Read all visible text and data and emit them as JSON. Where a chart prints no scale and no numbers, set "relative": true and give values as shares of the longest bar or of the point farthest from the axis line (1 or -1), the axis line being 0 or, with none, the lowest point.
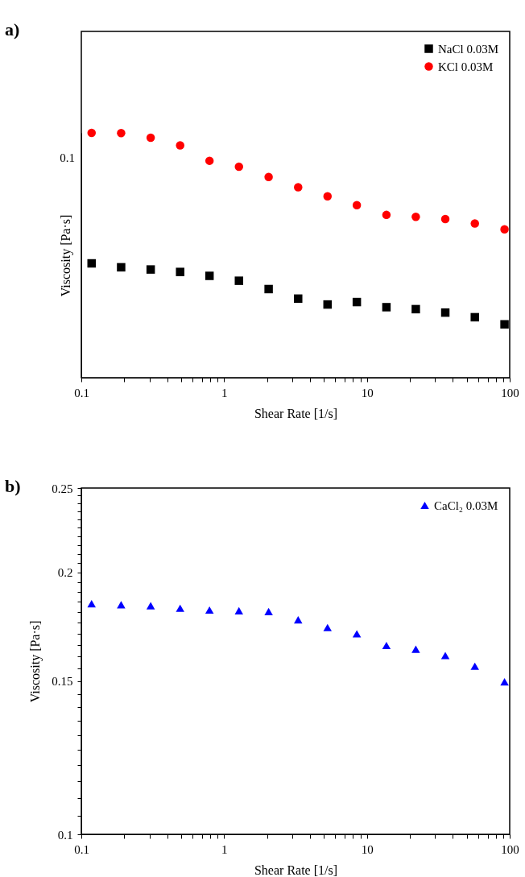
{
  "chart_data": [
    {
      "type": "scatter",
      "xlabel": "Shear Rate [1/s]",
      "ylabel": "Viscosity [Pa·s]",
      "log": "x",
      "relative": true,
      "grid": false,
      "legend": "top right",
      "annotations": [
        "a)",
        "0.1"
      ],
      "xlim": [
        0.1,
        100
      ],
      "xticks": [
        0.1,
        {
          "value": 0.2,
          "label": null
        },
        {
          "value": 0.3,
          "label": null
        },
        {
          "value": 0.4,
          "label": null
        },
        {
          "value": 0.5,
          "label": null
        },
        {
          "value": 0.6,
          "label": null
        },
        {
          "value": 0.7,
          "label": null
        },
        {
          "value": 0.8,
          "label": null
        },
        {
          "value": 0.9,
          "label": null
        },
        1,
        {
          "value": 2,
          "label": null
        },
        {
          "value": 3,
          "label": null
        },
        {
          "value": 4,
          "label": null
        },
        {
          "value": 5,
          "label": null
        },
        {
          "value": 6,
          "label": null
        },
        {
          "value": 7,
          "label": null
        },
        {
          "value": 8,
          "label": null
        },
        {
          "value": 9,
          "label": null
        },
        10,
        {
          "value": 20,
          "label": null
        },
        {
          "value": 30,
          "label": null
        },
        {
          "value": 40,
          "label": null
        },
        {
          "value": 50,
          "label": null
        },
        {
          "value": 60,
          "label": null
        },
        {
          "value": 70,
          "label": null
        },
        {
          "value": 80,
          "label": null
        },
        {
          "value": 90,
          "label": null
        },
        100
      ],
      "x": [
        0.118,
        0.19,
        0.306,
        0.492,
        0.79,
        1.27,
        2.05,
        3.3,
        5.3,
        8.5,
        13.7,
        22,
        35.4,
        57,
        92
      ],
      "series": [
        {
          "name": "NaCl 0.03M",
          "color": "#000000",
          "marker": "square",
          "values": [
            0.467,
            0.451,
            0.442,
            0.432,
            0.416,
            0.396,
            0.362,
            0.323,
            0.299,
            0.309,
            0.288,
            0.28,
            0.266,
            0.247,
            0.218
          ]
        },
        {
          "name": "KCl 0.03M",
          "color": "#ff0000",
          "marker": "circle",
          "values": [
            1,
            0.999,
            0.98,
            0.949,
            0.886,
            0.862,
            0.82,
            0.778,
            0.741,
            0.705,
            0.665,
            0.657,
            0.648,
            0.63,
            0.606
          ]
        }
      ]
    },
    {
      "type": "scatter",
      "xlabel": "Shear Rate [1/s]",
      "ylabel": "Viscosity [Pa·s]",
      "log": "xy",
      "grid": false,
      "legend": "top right",
      "annotations": [
        "b)"
      ],
      "xlim": [
        0.1,
        100
      ],
      "ylim": [
        0.1,
        0.25
      ],
      "xticks": [
        0.1,
        {
          "value": 0.2,
          "label": null
        },
        {
          "value": 0.3,
          "label": null
        },
        {
          "value": 0.4,
          "label": null
        },
        {
          "value": 0.5,
          "label": null
        },
        {
          "value": 0.6,
          "label": null
        },
        {
          "value": 0.7,
          "label": null
        },
        {
          "value": 0.8,
          "label": null
        },
        {
          "value": 0.9,
          "label": null
        },
        1,
        {
          "value": 2,
          "label": null
        },
        {
          "value": 3,
          "label": null
        },
        {
          "value": 4,
          "label": null
        },
        {
          "value": 5,
          "label": null
        },
        {
          "value": 6,
          "label": null
        },
        {
          "value": 7,
          "label": null
        },
        {
          "value": 8,
          "label": null
        },
        {
          "value": 9,
          "label": null
        },
        10,
        {
          "value": 20,
          "label": null
        },
        {
          "value": 30,
          "label": null
        },
        {
          "value": 40,
          "label": null
        },
        {
          "value": 50,
          "label": null
        },
        {
          "value": 60,
          "label": null
        },
        {
          "value": 70,
          "label": null
        },
        {
          "value": 80,
          "label": null
        },
        {
          "value": 90,
          "label": null
        },
        100
      ],
      "yticks": [
        0.1,
        {
          "value": 0.105,
          "label": null
        },
        {
          "value": 0.11,
          "label": null
        },
        {
          "value": 0.115,
          "label": null
        },
        {
          "value": 0.12,
          "label": null
        },
        {
          "value": 0.125,
          "label": null
        },
        {
          "value": 0.13,
          "label": null
        },
        {
          "value": 0.135,
          "label": null
        },
        {
          "value": 0.14,
          "label": null
        },
        {
          "value": 0.145,
          "label": null
        },
        0.15,
        {
          "value": 0.155,
          "label": null
        },
        {
          "value": 0.16,
          "label": null
        },
        {
          "value": 0.165,
          "label": null
        },
        {
          "value": 0.17,
          "label": null
        },
        {
          "value": 0.175,
          "label": null
        },
        {
          "value": 0.18,
          "label": null
        },
        {
          "value": 0.185,
          "label": null
        },
        {
          "value": 0.19,
          "label": null
        },
        {
          "value": 0.195,
          "label": null
        },
        0.2,
        {
          "value": 0.205,
          "label": null
        },
        {
          "value": 0.21,
          "label": null
        },
        {
          "value": 0.215,
          "label": null
        },
        {
          "value": 0.22,
          "label": null
        },
        {
          "value": 0.225,
          "label": null
        },
        {
          "value": 0.23,
          "label": null
        },
        {
          "value": 0.235,
          "label": null
        },
        {
          "value": 0.24,
          "label": null
        },
        {
          "value": 0.245,
          "label": null
        },
        0.25
      ],
      "x": [
        0.118,
        0.19,
        0.306,
        0.492,
        0.79,
        1.27,
        2.05,
        3.3,
        5.3,
        8.5,
        13.7,
        22,
        35.4,
        57,
        92
      ],
      "series": [
        {
          "name": "CaCl₂ 0.03M",
          "color": "#0000ff",
          "marker": "triangle",
          "values": [
            0.1841,
            0.1836,
            0.1831,
            0.1819,
            0.181,
            0.1807,
            0.1803,
            0.1764,
            0.1728,
            0.17,
            0.1648,
            0.1632,
            0.1605,
            0.156,
            0.1497
          ]
        }
      ]
    }
  ]
}
